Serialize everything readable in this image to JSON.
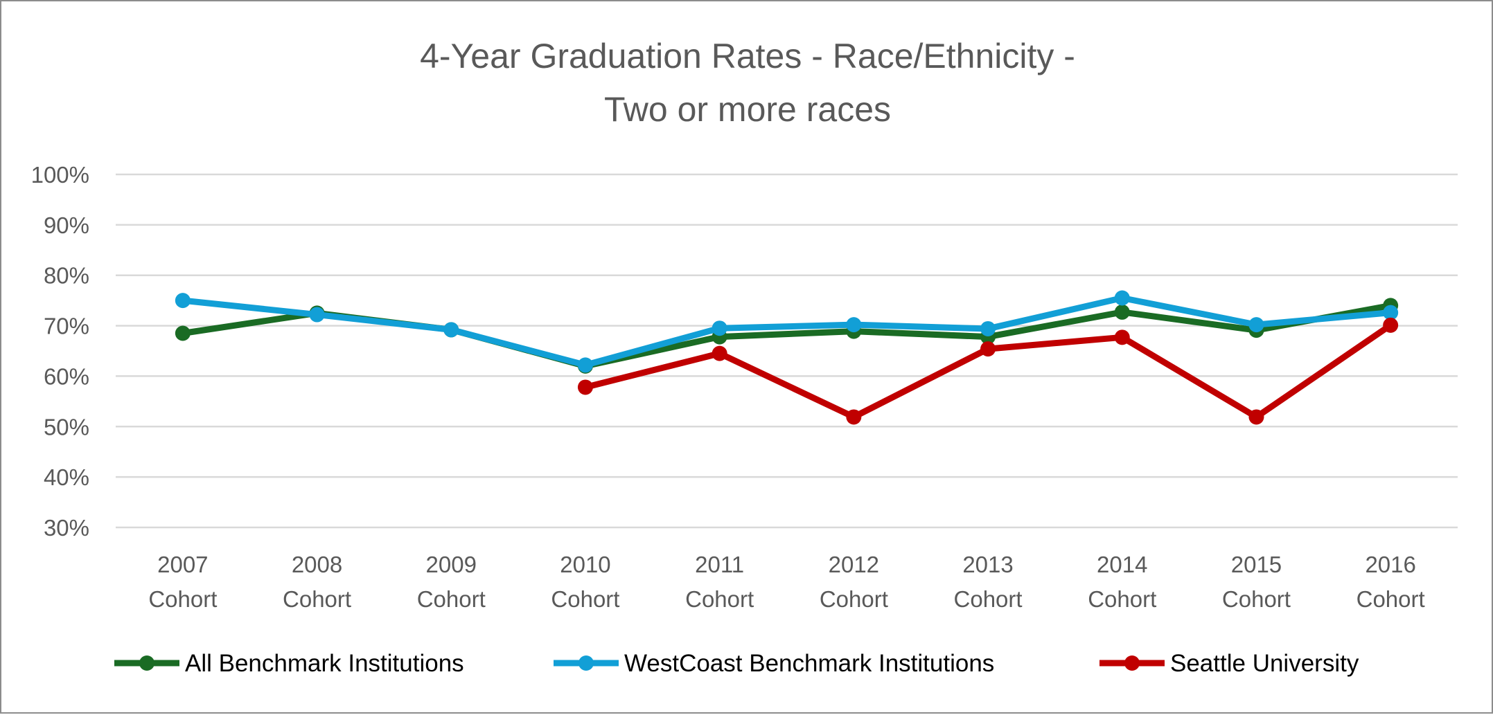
{
  "chart_data": {
    "type": "line",
    "title": [
      "4-Year Graduation Rates - Race/Ethnicity -",
      "Two or more races"
    ],
    "xlabel": "",
    "ylabel": "",
    "ylim": [
      30,
      100
    ],
    "yticks": [
      30,
      40,
      50,
      60,
      70,
      80,
      90,
      100
    ],
    "ytick_labels": [
      "30%",
      "40%",
      "50%",
      "60%",
      "70%",
      "80%",
      "90%",
      "100%"
    ],
    "grid": true,
    "legend_position": "bottom",
    "categories": [
      [
        "2007",
        "Cohort"
      ],
      [
        "2008",
        "Cohort"
      ],
      [
        "2009",
        "Cohort"
      ],
      [
        "2010",
        "Cohort"
      ],
      [
        "2011",
        "Cohort"
      ],
      [
        "2012",
        "Cohort"
      ],
      [
        "2013",
        "Cohort"
      ],
      [
        "2014",
        "Cohort"
      ],
      [
        "2015",
        "Cohort"
      ],
      [
        "2016",
        "Cohort"
      ]
    ],
    "series": [
      {
        "name": "All Benchmark Institutions",
        "color": "#1a6b24",
        "values": [
          68.5,
          72.5,
          69.2,
          62.0,
          67.8,
          68.9,
          67.8,
          72.7,
          69.1,
          74.0
        ]
      },
      {
        "name": "WestCoast Benchmark Institutions",
        "color": "#129fd6",
        "values": [
          75.0,
          72.2,
          69.2,
          62.2,
          69.5,
          70.2,
          69.4,
          75.5,
          70.2,
          72.6
        ]
      },
      {
        "name": "Seattle University",
        "color": "#c00000",
        "values": [
          null,
          null,
          null,
          57.8,
          64.5,
          51.9,
          65.4,
          67.7,
          51.9,
          70.1
        ]
      }
    ]
  }
}
